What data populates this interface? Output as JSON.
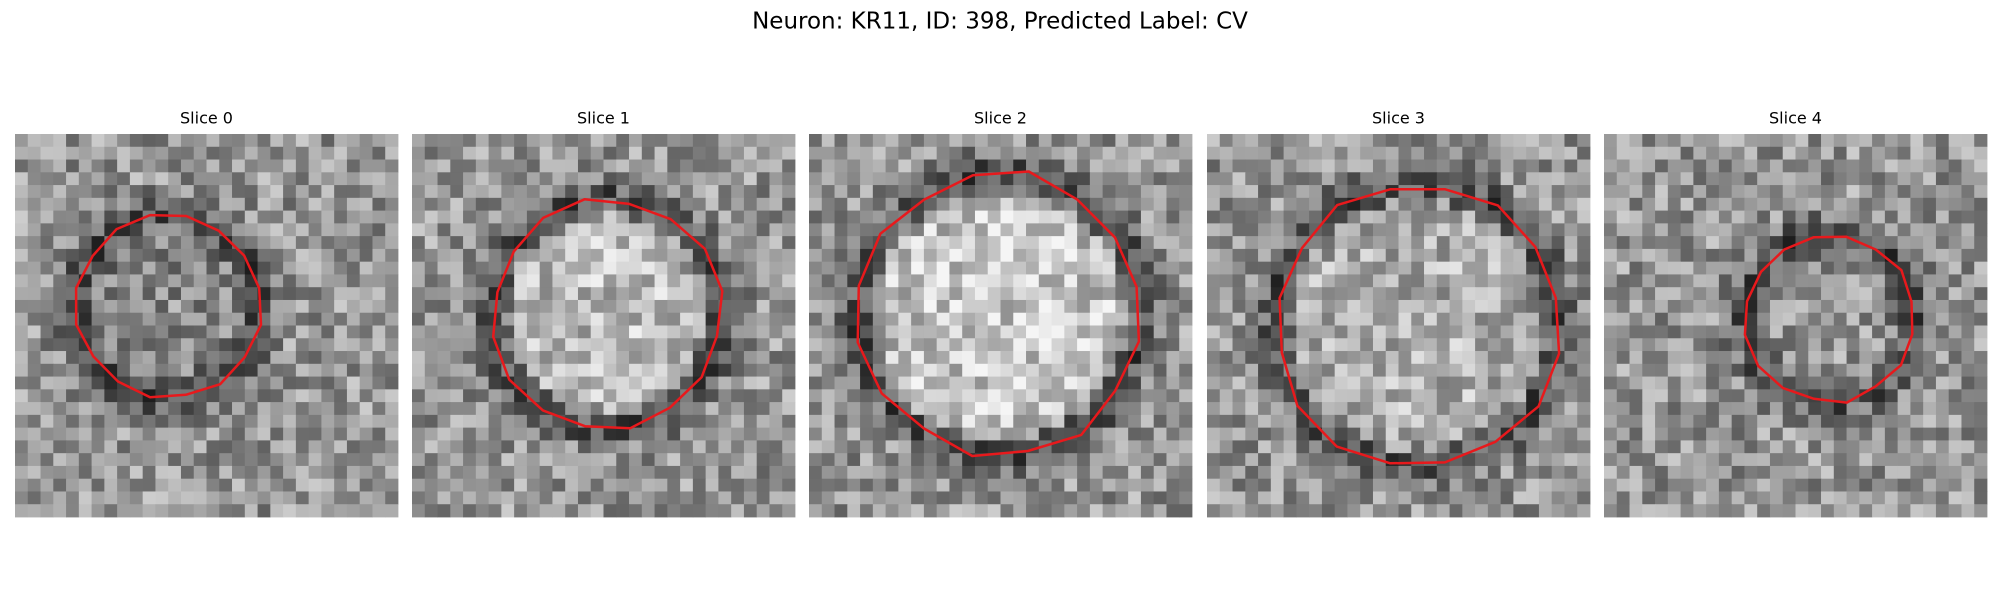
{
  "title": "Neuron: KR11, ID: 398, Predicted Label: CV",
  "panels": [
    {
      "title": "Slice 0"
    },
    {
      "title": "Slice 1"
    },
    {
      "title": "Slice 2"
    },
    {
      "title": "Slice 3"
    },
    {
      "title": "Slice 4"
    }
  ]
}
